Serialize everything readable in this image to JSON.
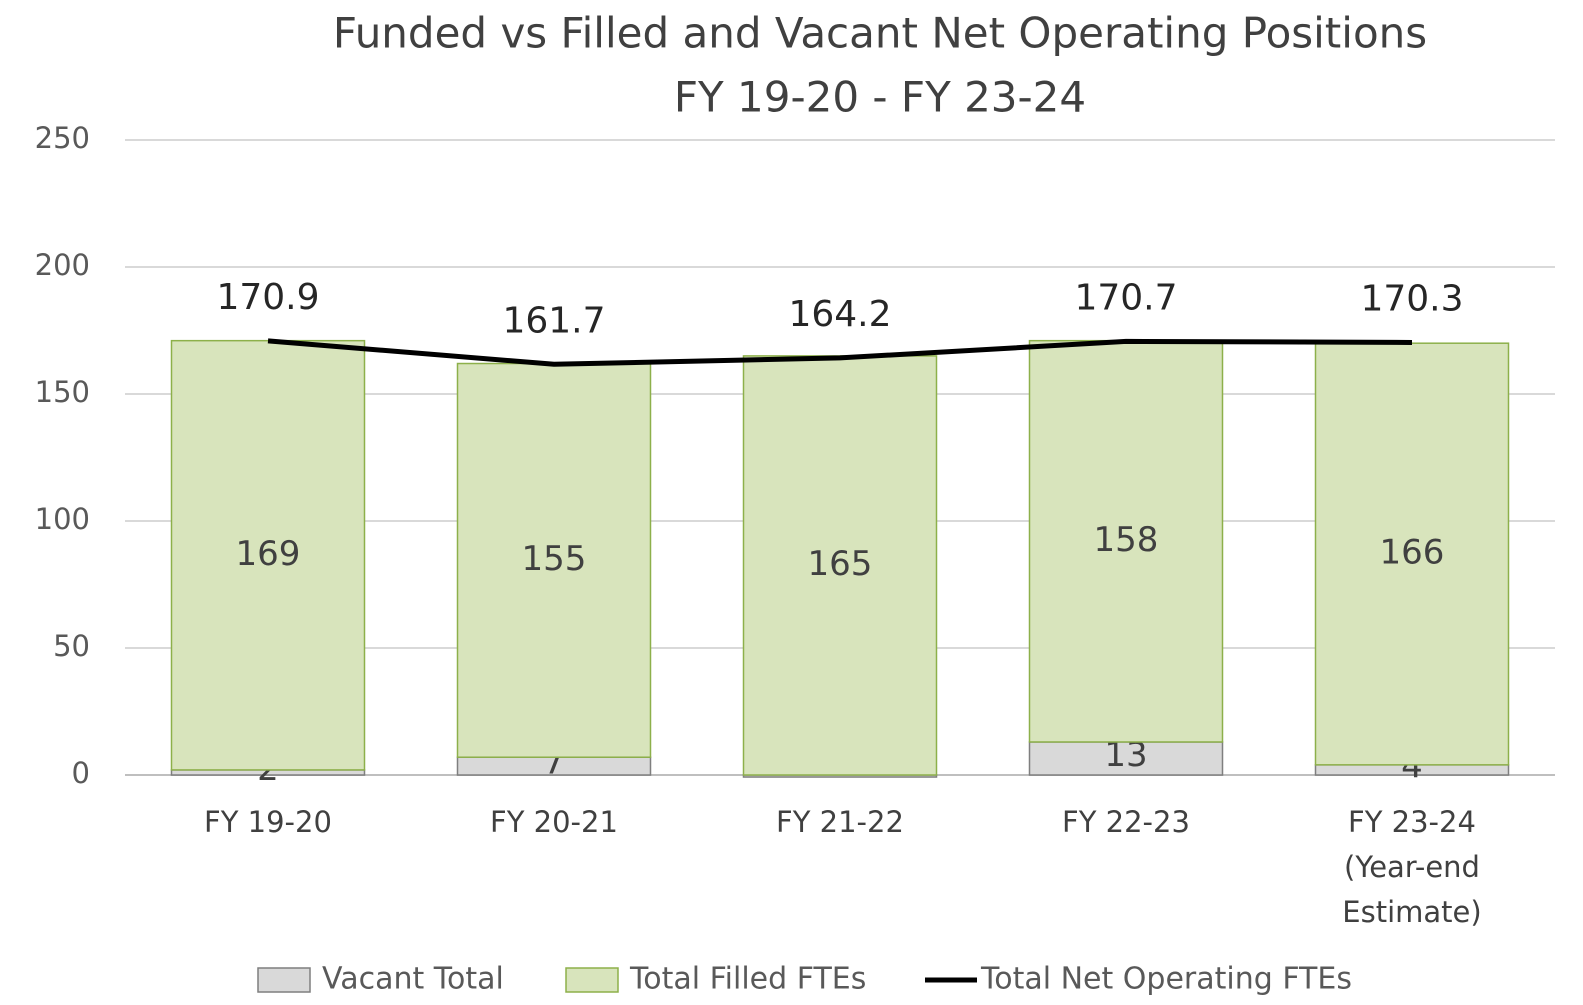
{
  "chart_data": {
    "type": "bar_line",
    "title": "Funded vs Filled and Vacant Net Operating Positions",
    "subtitle": "FY 19-20 - FY 23-24",
    "categories": [
      "FY 19-20",
      "FY 20-21",
      "FY 21-22",
      "FY 22-23",
      "FY 23-24 (Year-end Estimate)"
    ],
    "series": [
      {
        "name": "Vacant Total",
        "type": "bar",
        "color": "#d9d9d9",
        "stroke": "#7f7f7f",
        "values": [
          2,
          7,
          -0.8,
          13,
          4
        ],
        "value_labels": [
          "2",
          "7",
          null,
          "13",
          "4"
        ]
      },
      {
        "name": "Total Filled FTEs",
        "type": "bar",
        "color": "#d8e4bc",
        "stroke": "#8db04a",
        "values": [
          169,
          155,
          165,
          158,
          166
        ]
      },
      {
        "name": "Total Net Operating FTEs",
        "type": "line",
        "color": "#000000",
        "values": [
          170.9,
          161.7,
          164.2,
          170.7,
          170.3
        ]
      }
    ],
    "ylim": [
      0,
      250
    ],
    "yticks": [
      0,
      50,
      100,
      150,
      200,
      250
    ],
    "grid": true,
    "legend": "bottom"
  }
}
